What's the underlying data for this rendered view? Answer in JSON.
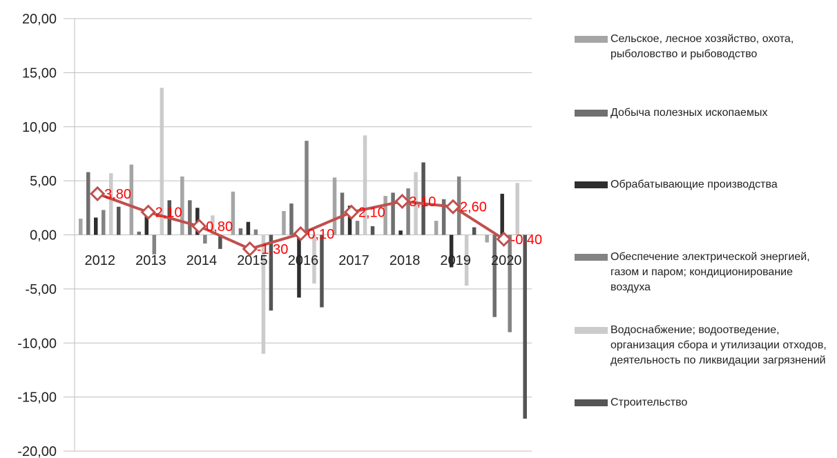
{
  "chart_data": {
    "type": "bar",
    "categories": [
      "2012",
      "2013",
      "2014",
      "2015",
      "2016",
      "2017",
      "2018",
      "2019",
      "2020"
    ],
    "ylim": [
      -20,
      20
    ],
    "yticks": [
      {
        "value": -20,
        "label": "-20,00"
      },
      {
        "value": -15,
        "label": "-15,00"
      },
      {
        "value": -10,
        "label": "-10,00"
      },
      {
        "value": -5,
        "label": "-5,00"
      },
      {
        "value": 0,
        "label": "0,00"
      },
      {
        "value": 5,
        "label": "5,00"
      },
      {
        "value": 10,
        "label": "10,00"
      },
      {
        "value": 15,
        "label": "15,00"
      },
      {
        "value": 20,
        "label": "20,00"
      }
    ],
    "grid": true,
    "legend": "right",
    "series": [
      {
        "name": "Сельское, лесное хозяйство, охота, рыболовство и рыбоводство",
        "color": "#a5a5a5",
        "values": [
          1.5,
          6.5,
          5.4,
          4.0,
          2.2,
          5.3,
          3.6,
          1.3,
          -0.7
        ]
      },
      {
        "name": "Добыча полезных ископаемых",
        "color": "#6f6f6f",
        "values": [
          5.8,
          0.3,
          3.2,
          0.6,
          2.9,
          3.9,
          3.9,
          3.3,
          -7.6
        ]
      },
      {
        "name": "Обрабатывающие производства",
        "color": "#2e2e2e",
        "values": [
          1.6,
          2.2,
          2.5,
          1.2,
          -5.8,
          2.7,
          0.4,
          -3.0,
          3.8
        ]
      },
      {
        "name": "Обеспечение электрической энергией, газом и паром; кондиционирование воздуха",
        "color": "#838383",
        "values": [
          2.3,
          -1.8,
          -0.8,
          0.5,
          8.7,
          1.3,
          4.3,
          5.4,
          -9.0
        ]
      },
      {
        "name": "Водоснабжение; водоотведение, организация сбора и утилизации отходов, деятельность по ликвидации загрязнений",
        "color": "#cbcbcb",
        "values": [
          5.7,
          13.6,
          1.8,
          -11.0,
          -4.5,
          9.2,
          5.8,
          -4.7,
          4.8
        ]
      },
      {
        "name": "Строительство",
        "color": "#555555",
        "values": [
          2.6,
          3.2,
          -1.3,
          -7.0,
          -6.7,
          0.8,
          6.7,
          0.7,
          -17.0
        ]
      }
    ],
    "line": {
      "color": "#c0504d",
      "label_color": "#ff0000",
      "values": [
        3.8,
        2.1,
        0.8,
        -1.3,
        0.1,
        2.1,
        3.1,
        2.6,
        -0.4
      ],
      "value_labels": [
        "3,80",
        "2,10",
        "0,80",
        "-1,30",
        "0,10",
        "2,10",
        "3,10",
        "2,60",
        "-0,40"
      ]
    }
  }
}
